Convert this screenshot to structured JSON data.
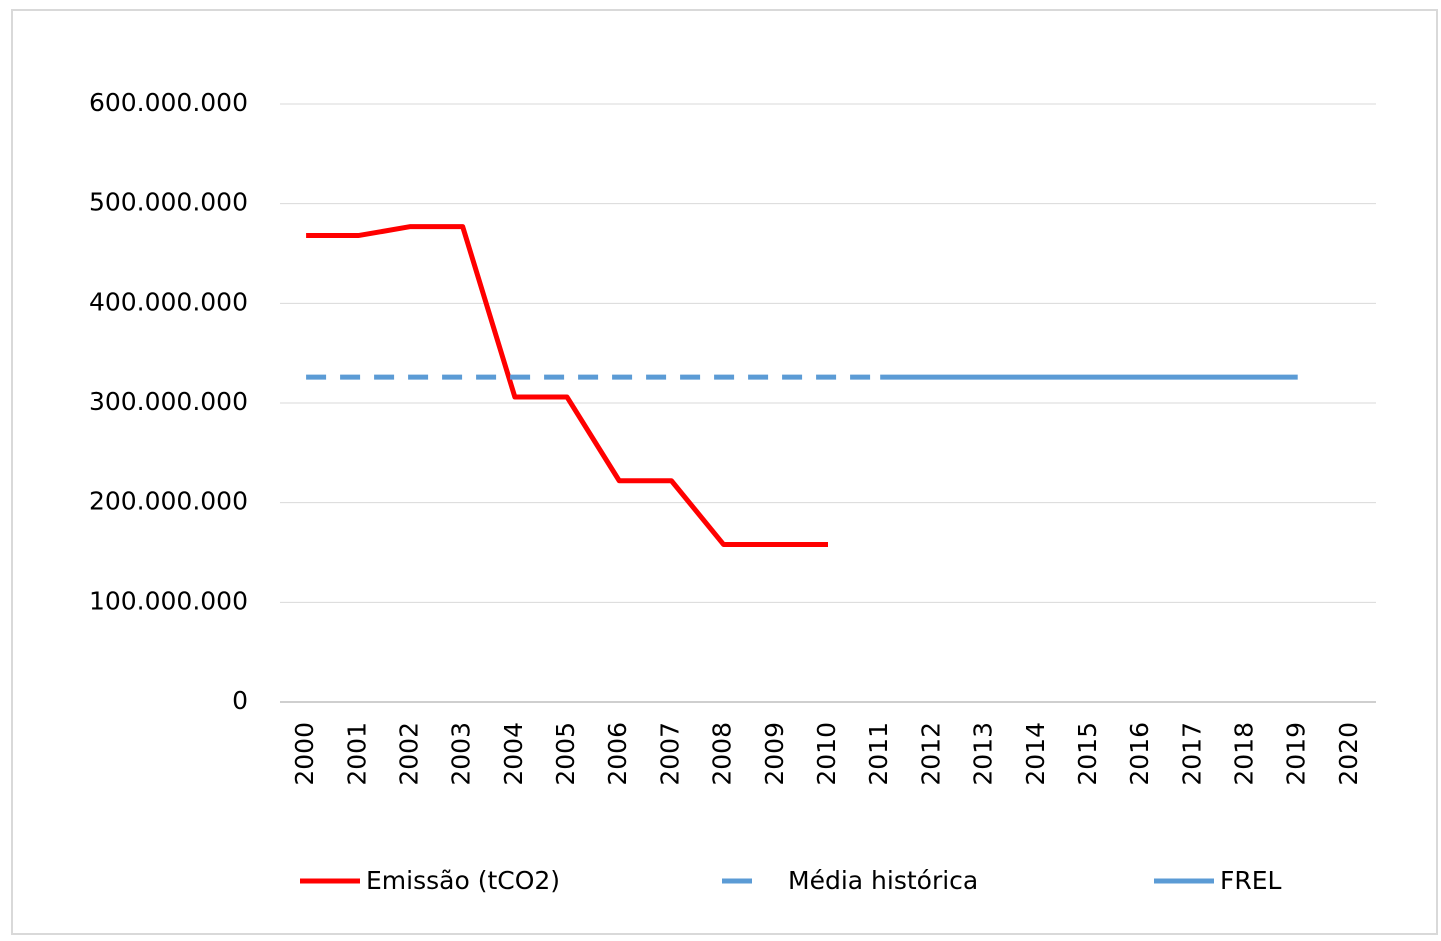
{
  "chart_data": {
    "type": "line",
    "categories": [
      "2000",
      "2001",
      "2002",
      "2003",
      "2004",
      "2005",
      "2006",
      "2007",
      "2008",
      "2009",
      "2010",
      "2011",
      "2012",
      "2013",
      "2014",
      "2015",
      "2016",
      "2017",
      "2018",
      "2019",
      "2020"
    ],
    "series": [
      {
        "name": "Emissão (tCO2)",
        "color": "#ff0000",
        "dash": false,
        "values": [
          468000000,
          468000000,
          477000000,
          477000000,
          306000000,
          306000000,
          222000000,
          222000000,
          158000000,
          158000000,
          158000000,
          null,
          null,
          null,
          null,
          null,
          null,
          null,
          null,
          null,
          null
        ]
      },
      {
        "name": "Média histórica",
        "color": "#5b9bd5",
        "dash": true,
        "values": [
          326000000,
          326000000,
          326000000,
          326000000,
          326000000,
          326000000,
          326000000,
          326000000,
          326000000,
          326000000,
          326000000,
          326000000,
          null,
          null,
          null,
          null,
          null,
          null,
          null,
          null,
          null
        ]
      },
      {
        "name": "FREL",
        "color": "#5b9bd5",
        "dash": false,
        "values": [
          null,
          null,
          null,
          null,
          null,
          null,
          null,
          null,
          null,
          null,
          null,
          326000000,
          326000000,
          326000000,
          326000000,
          326000000,
          326000000,
          326000000,
          326000000,
          326000000,
          null
        ]
      }
    ],
    "ylim": [
      0,
      600000000
    ],
    "yticks": [
      0,
      {
        "value": 100000000,
        "label": "100.000.000"
      },
      {
        "value": 200000000,
        "label": "200.000.000"
      },
      {
        "value": 300000000,
        "label": "300.000.000"
      },
      {
        "value": 400000000,
        "label": "400.000.000"
      },
      {
        "value": 500000000,
        "label": "500.000.000"
      },
      {
        "value": 600000000,
        "label": "600.000.000"
      }
    ],
    "grid": true,
    "legend": "bottom"
  }
}
